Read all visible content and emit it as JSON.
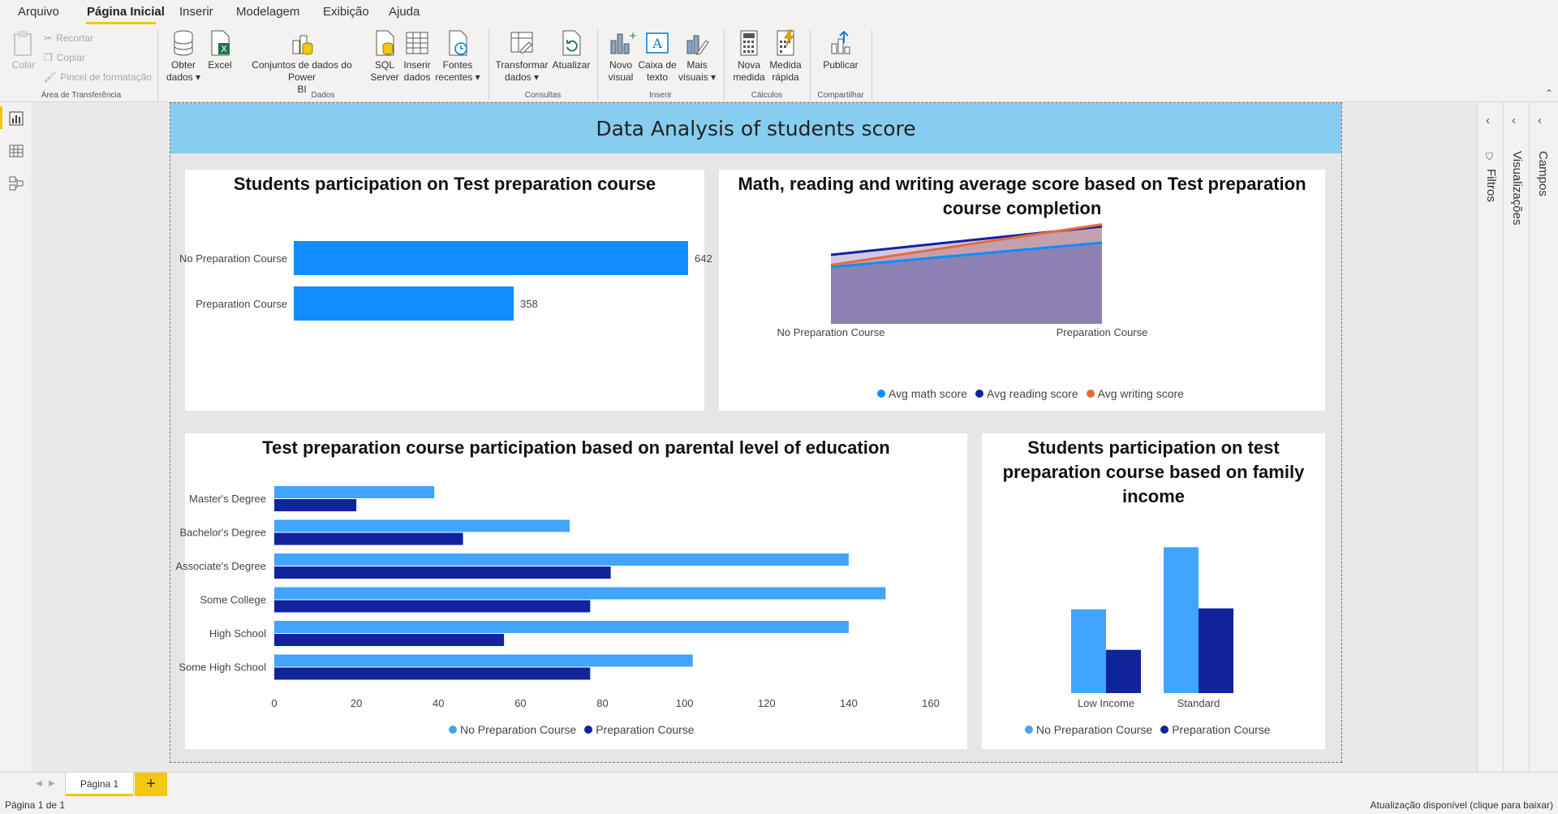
{
  "menu": {
    "items": [
      "Arquivo",
      "Página Inicial",
      "Inserir",
      "Modelagem",
      "Exibição",
      "Ajuda"
    ]
  },
  "ribbon": {
    "clipboard": {
      "paste": "Colar",
      "cut": "Recortar",
      "copy": "Copiar",
      "format_painter": "Pincel de formatação",
      "group": "Área de Transferência"
    },
    "data": {
      "get_data": [
        "Obter",
        "dados ▾"
      ],
      "excel": "Excel",
      "pbi_datasets": [
        "Conjuntos de dados do Power",
        "BI"
      ],
      "sql": [
        "SQL",
        "Server"
      ],
      "enter_data": [
        "Inserir",
        "dados"
      ],
      "recent": [
        "Fontes",
        "recentes ▾"
      ],
      "group": "Dados"
    },
    "queries": {
      "transform": [
        "Transformar",
        "dados ▾"
      ],
      "refresh": "Atualizar",
      "group": "Consultas"
    },
    "insert": {
      "new_visual": [
        "Novo",
        "visual"
      ],
      "text_box": [
        "Caixa de",
        "texto"
      ],
      "more_visuals": [
        "Mais",
        "visuais ▾"
      ],
      "group": "Inserir"
    },
    "calc": {
      "new_measure": [
        "Nova",
        "medida"
      ],
      "quick_measure": [
        "Medida",
        "rápida"
      ],
      "group": "Cálculos"
    },
    "share": {
      "publish": "Publicar",
      "group": "Compartilhar"
    }
  },
  "report": {
    "title": "Data Analysis of students score"
  },
  "panes": {
    "filters": "Filtros",
    "visualizations": "Visualizações",
    "fields": "Campos"
  },
  "tabs": {
    "page1": "Página 1",
    "add": "+"
  },
  "status": {
    "page": "Página 1 de 1",
    "update": "Atualização disponível (clique para baixar)"
  },
  "colors": {
    "light_blue": "#118dff",
    "bar_light": "#41a4ff",
    "dark_navy": "#12239e",
    "orange": "#e66c37",
    "accent_yellow": "#f2c811",
    "title_band": "#87cdf0"
  },
  "chart_data": [
    {
      "type": "bar",
      "title": "Students participation on Test preparation course",
      "categories": [
        "No Preparation Course",
        "Preparation Course"
      ],
      "values": [
        642,
        358
      ],
      "data_labels": [
        "642",
        "358"
      ]
    },
    {
      "type": "area",
      "title": "Math, reading and writing average score based on Test preparation course completion",
      "categories": [
        "No Preparation Course",
        "Preparation Course"
      ],
      "series": [
        {
          "name": "Avg math score",
          "values": [
            64,
            70
          ]
        },
        {
          "name": "Avg reading score",
          "values": [
            67,
            74
          ]
        },
        {
          "name": "Avg writing score",
          "values": [
            64.5,
            74.5
          ]
        }
      ],
      "ylim": [
        50,
        76
      ],
      "legend": "bottom-center"
    },
    {
      "type": "bar",
      "title": "Test preparation course participation based on parental level of education",
      "categories": [
        "Master's Degree",
        "Bachelor's Degree",
        "Associate's Degree",
        "Some College",
        "High School",
        "Some High School"
      ],
      "series": [
        {
          "name": "No Preparation Course",
          "values": [
            39,
            72,
            140,
            149,
            140,
            102
          ]
        },
        {
          "name": "Preparation Course",
          "values": [
            20,
            46,
            82,
            77,
            56,
            77
          ]
        }
      ],
      "xlim": [
        0,
        160
      ],
      "xticks": [
        "0",
        "20",
        "40",
        "60",
        "80",
        "100",
        "120",
        "140",
        "160"
      ],
      "legend": "bottom-center"
    },
    {
      "type": "bar",
      "title": "Students participation on test preparation course based on family income",
      "categories": [
        "Low Income",
        "Standard"
      ],
      "series": [
        {
          "name": "No Preparation Course",
          "values": [
            234,
            408
          ]
        },
        {
          "name": "Preparation Course",
          "values": [
            121,
            237
          ]
        }
      ],
      "ylim": [
        0,
        420
      ],
      "legend": "bottom-center"
    }
  ]
}
